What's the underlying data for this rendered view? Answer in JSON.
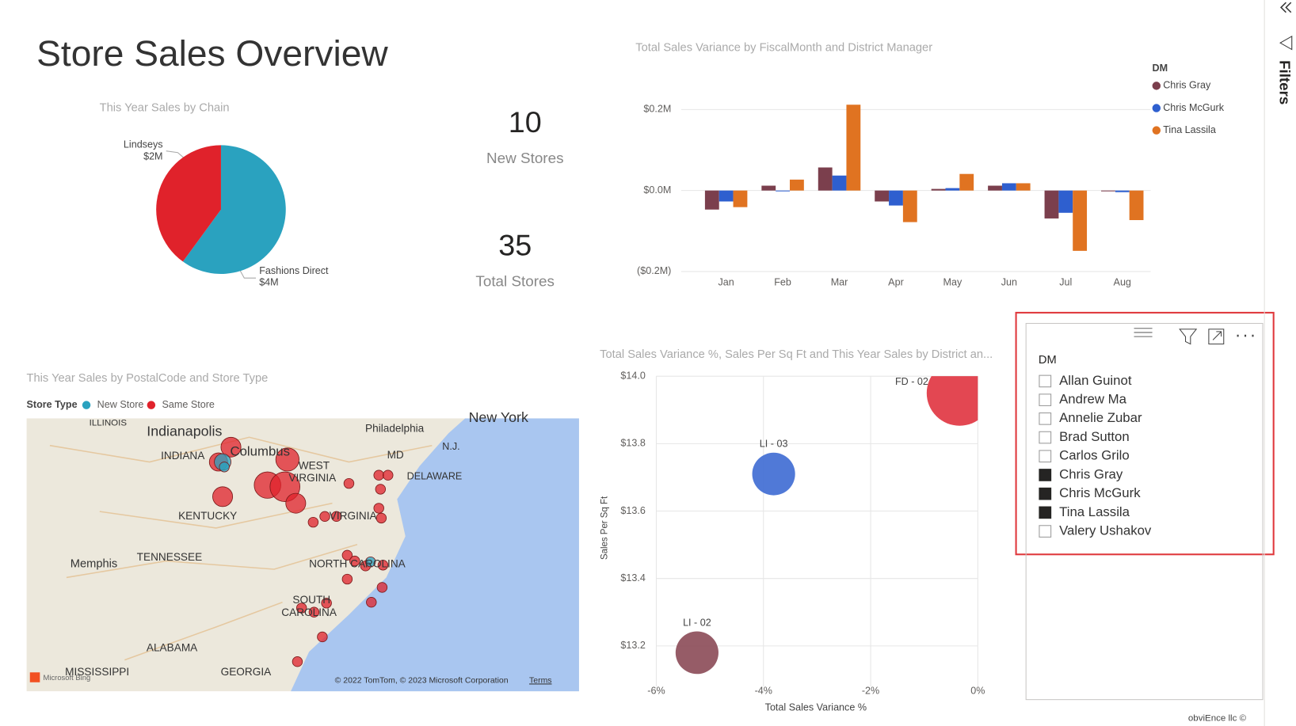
{
  "header": {
    "title": "Store Sales Overview"
  },
  "cards": [
    {
      "value": 10,
      "label": "New Stores"
    },
    {
      "value": 35,
      "label": "Total Stores"
    }
  ],
  "chart_data": [
    {
      "type": "pie",
      "title": "This Year Sales by Chain",
      "categories": [
        "Fashions Direct",
        "Lindseys"
      ],
      "values": [
        3600000,
        2400000
      ],
      "value_labels": [
        "$4M",
        "$2M"
      ],
      "colors": [
        "#2aa2bf",
        "#e0222b"
      ]
    },
    {
      "type": "bar",
      "title": "Total Sales Variance by FiscalMonth and District Manager",
      "legend_title": "DM",
      "categories": [
        "Jan",
        "Feb",
        "Mar",
        "Apr",
        "May",
        "Jun",
        "Jul",
        "Aug"
      ],
      "series": [
        {
          "name": "Chris Gray",
          "color": "#7b3f4d",
          "values": [
            -47000,
            12000,
            57000,
            -27000,
            4000,
            12000,
            -69000,
            -2000
          ]
        },
        {
          "name": "Chris McGurk",
          "color": "#2e5fcf",
          "values": [
            -27000,
            -2000,
            37000,
            -37000,
            6000,
            18000,
            -55000,
            -4000
          ]
        },
        {
          "name": "Tina Lassila",
          "color": "#e07321",
          "values": [
            -41000,
            27000,
            212000,
            -78000,
            41000,
            18000,
            -149000,
            -73000
          ]
        }
      ],
      "ylim": [
        -210000,
        220000
      ],
      "yticks": [
        {
          "value": -200000,
          "label": "($0.2M)"
        },
        {
          "value": 0,
          "label": "$0.0M"
        },
        {
          "value": 200000,
          "label": "$0.2M"
        }
      ],
      "grid": true
    },
    {
      "type": "scatter",
      "title": "Total Sales Variance %, Sales Per Sq Ft and This Year Sales by District an...",
      "x_label": "Total Sales Variance %",
      "y_label": "Sales Per Sq Ft",
      "points": [
        {
          "label": "LI - 02",
          "x": -5.24,
          "y": 13.18,
          "size": 0.85,
          "color": "#8b4a57"
        },
        {
          "label": "LI - 03",
          "x": -3.81,
          "y": 13.71,
          "size": 0.85,
          "color": "#3d6ad3"
        },
        {
          "label": "FD - 02",
          "x": -0.34,
          "y": 13.95,
          "size": 2.0,
          "color": "#e0333f"
        }
      ],
      "xlim": [
        -6,
        0
      ],
      "xticks": [
        {
          "value": -6,
          "label": "-6%"
        },
        {
          "value": -4,
          "label": "-4%"
        },
        {
          "value": -2,
          "label": "-2%"
        },
        {
          "value": 0,
          "label": "0%"
        }
      ],
      "ylim": [
        13.08,
        14.0
      ],
      "yticks": [
        {
          "value": 13.2,
          "label": "$13.2"
        },
        {
          "value": 13.4,
          "label": "$13.4"
        },
        {
          "value": 13.6,
          "label": "$13.6"
        },
        {
          "value": 13.8,
          "label": "$13.8"
        },
        {
          "value": 14.0,
          "label": "$14.0"
        }
      ],
      "grid": true
    }
  ],
  "map": {
    "title": "This Year Sales by PostalCode and Store Type",
    "legend_title": "Store Type",
    "legend": [
      {
        "name": "New Store",
        "color": "#2aa2bf"
      },
      {
        "name": "Same Store",
        "color": "#e0222b"
      }
    ],
    "places": [
      "ILLINOIS",
      "Indianapolis",
      "INDIANA",
      "Columbus",
      "WEST",
      "VIRGINIA",
      "Philadelphia",
      "New York",
      "N.J.",
      "MD",
      "DELAWARE",
      "KENTUCKY",
      "VIRGINIA",
      "Memphis",
      "TENNESSEE",
      "NORTH CAROLINA",
      "SOUTH",
      "CAROLINA",
      "ALABAMA",
      "MISSISSIPPI",
      "GEORGIA"
    ],
    "attribution": "© 2022 TomTom, © 2023 Microsoft Corporation",
    "terms": "Terms",
    "logo": "Microsoft Bing"
  },
  "slicer": {
    "title": "DM",
    "items": [
      {
        "label": "Allan Guinot",
        "checked": false
      },
      {
        "label": "Andrew Ma",
        "checked": false
      },
      {
        "label": "Annelie Zubar",
        "checked": false
      },
      {
        "label": "Brad Sutton",
        "checked": false
      },
      {
        "label": "Carlos Grilo",
        "checked": false
      },
      {
        "label": "Chris Gray",
        "checked": true
      },
      {
        "label": "Chris McGurk",
        "checked": true
      },
      {
        "label": "Tina Lassila",
        "checked": true
      },
      {
        "label": "Valery Ushakov",
        "checked": false
      }
    ]
  },
  "filters_pane": {
    "label": "Filters"
  },
  "footer": "obviEnce llc ©"
}
